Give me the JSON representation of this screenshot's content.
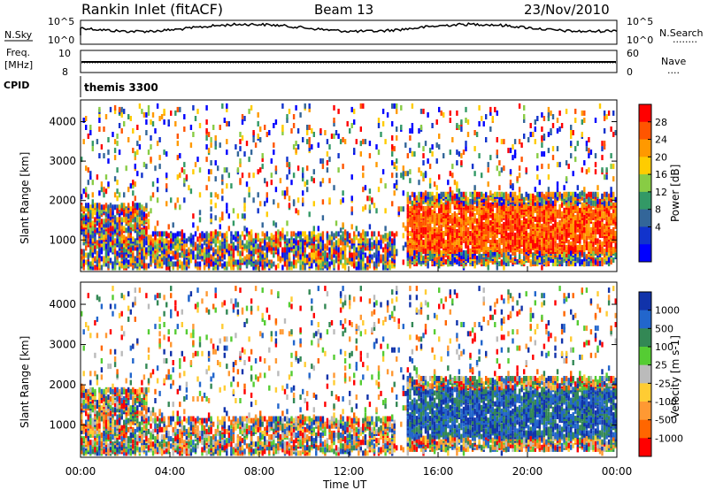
{
  "header": {
    "station": "Rankin Inlet (fitACF)",
    "beam": "Beam 13",
    "date": "23/Nov/2010"
  },
  "nsky_panel": {
    "left_label": "N.Sky",
    "right_label": "N.Search",
    "ticks": {
      "upper": "10^5",
      "lower": "10^0"
    },
    "right_legend_symbol": "........"
  },
  "freq_panel": {
    "label_line1": "Freq.",
    "label_line2": "[MHz]",
    "left_ticks": [
      "10",
      "8"
    ],
    "right_label": "Nave",
    "right_ticks": [
      "60",
      "0"
    ],
    "right_legend_symbol": "...."
  },
  "cpid_panel": {
    "label": "CPID",
    "value": "themis 3300"
  },
  "x_axis": {
    "title": "Time UT",
    "ticks": [
      "00:00",
      "04:00",
      "08:00",
      "12:00",
      "16:00",
      "20:00",
      "00:00"
    ]
  },
  "chart_data": [
    {
      "type": "heatmap",
      "ylabel": "Slant Range [km]",
      "y_ticks": [
        1000,
        2000,
        3000,
        4000
      ],
      "ylim": [
        200,
        4550
      ],
      "xlim": [
        0,
        24
      ],
      "colorbar": {
        "label": "Power [dB]",
        "ticks": [
          "28",
          "24",
          "20",
          "16",
          "12",
          "8",
          "4"
        ],
        "colors": [
          "#ff0000",
          "#ff5500",
          "#ff9900",
          "#ffcc00",
          "#88cc44",
          "#339966",
          "#336699",
          "#1133cc",
          "#0000ff"
        ]
      }
    },
    {
      "type": "heatmap",
      "ylabel": "Slant Range [km]",
      "y_ticks": [
        1000,
        2000,
        3000,
        4000
      ],
      "ylim": [
        200,
        4550
      ],
      "xlim": [
        0,
        24
      ],
      "colorbar": {
        "label": "Velocity [m s-1]",
        "ticks": [
          "1000",
          "500",
          "100",
          "25",
          "-25",
          "-100",
          "-500",
          "-1000"
        ],
        "colors": [
          "#1133aa",
          "#2266cc",
          "#338855",
          "#55cc33",
          "#bbbbbb",
          "#ffcc33",
          "#ff9933",
          "#ff6600",
          "#ff0000"
        ]
      }
    }
  ]
}
